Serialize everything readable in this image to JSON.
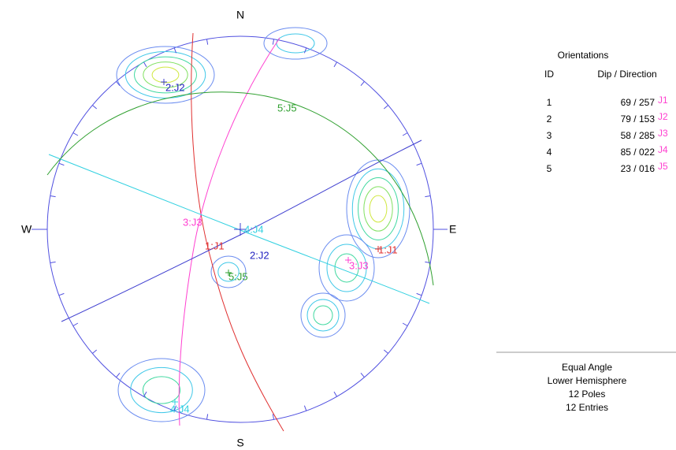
{
  "compass": {
    "n": "N",
    "e": "E",
    "s": "S",
    "w": "W"
  },
  "labels": [
    "1:J1",
    "2:J2",
    "3:J3",
    "4:J4",
    "5:J5"
  ],
  "table": {
    "title": "Orientations",
    "headers": [
      "ID",
      "Dip / Direction"
    ],
    "rows": [
      {
        "id": "1",
        "dip_direction": "69 / 257",
        "set": "J1"
      },
      {
        "id": "2",
        "dip_direction": "79 / 153",
        "set": "J2"
      },
      {
        "id": "3",
        "dip_direction": "58 / 285",
        "set": "J3"
      },
      {
        "id": "4",
        "dip_direction": "85 / 022",
        "set": "J4"
      },
      {
        "id": "5",
        "dip_direction": "23 / 016",
        "set": "J5"
      }
    ]
  },
  "footer": [
    "Equal Angle",
    "Lower Hemisphere",
    "12 Poles",
    "12 Entries"
  ]
}
